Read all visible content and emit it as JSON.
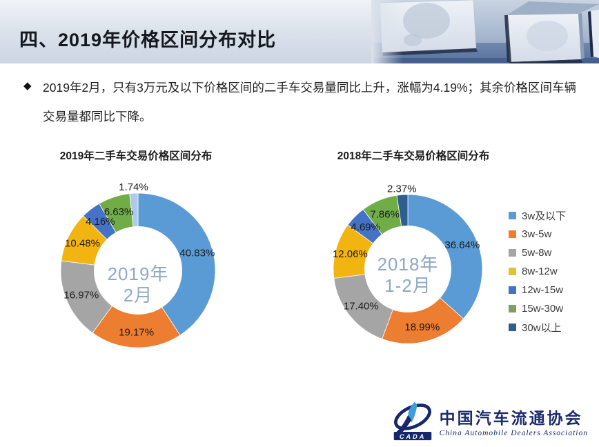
{
  "header": {
    "title": "四、2019年价格区间分布对比"
  },
  "summary": {
    "bullet": "◆",
    "text": "2019年2月，只有3万元及以下价格区间的二手车交易量同比上升，涨幅为4.19%；其余价格区间车辆交易量都同比下降。"
  },
  "chart_data": [
    {
      "type": "pie",
      "subtype": "donut",
      "title": "2019年二手车交易价格区间分布",
      "center_label_line1": "2019年",
      "center_label_line2": "2月",
      "categories": [
        "3w及以下",
        "3w-5w",
        "5w-8w",
        "8w-12w",
        "12w-15w",
        "15w-30w",
        "30w以上"
      ],
      "values": [
        40.83,
        19.17,
        16.97,
        10.48,
        4.16,
        6.63,
        1.74
      ],
      "labels": [
        "40.83%",
        "19.17%",
        "16.97%",
        "10.48%",
        "4.16%",
        "6.63%",
        "1.74%"
      ],
      "colors": [
        "#5B9BD5",
        "#ED7D31",
        "#A5A5A5",
        "#F2B411",
        "#4472C4",
        "#70AD47",
        "#AFC9E8"
      ],
      "start_angle_deg": 0,
      "direction": "clockwise",
      "legend_position": "right"
    },
    {
      "type": "pie",
      "subtype": "donut",
      "title": "2018年二手车交易价格区间分布",
      "center_label_line1": "2018年",
      "center_label_line2": "1-2月",
      "categories": [
        "3w及以下",
        "3w-5w",
        "5w-8w",
        "8w-12w",
        "12w-15w",
        "15w-30w",
        "30w以上"
      ],
      "values": [
        36.64,
        18.99,
        17.4,
        12.06,
        4.69,
        7.86,
        2.37
      ],
      "labels": [
        "36.64%",
        "18.99%",
        "17.40%",
        "12.06%",
        "4.69%",
        "7.86%",
        "2.37%"
      ],
      "colors": [
        "#5B9BD5",
        "#ED7D31",
        "#A5A5A5",
        "#F2B411",
        "#4472C4",
        "#70AD47",
        "#2D5E8D"
      ],
      "start_angle_deg": 0,
      "direction": "clockwise",
      "legend_position": "right"
    }
  ],
  "legend": {
    "items": [
      {
        "label": "3w及以下",
        "color": "#5B9BD5"
      },
      {
        "label": "3w-5w",
        "color": "#ED7D31"
      },
      {
        "label": "5w-8w",
        "color": "#A5A5A5"
      },
      {
        "label": "8w-12w",
        "color": "#E3C230"
      },
      {
        "label": "12w-15w",
        "color": "#4472C4"
      },
      {
        "label": "15w-30w",
        "color": "#7F9F67"
      },
      {
        "label": "30w以上",
        "color": "#2D5E8D"
      }
    ]
  },
  "colors": {
    "center_text": "#8EA9C6",
    "label_text": "#1b1b1b",
    "logo_navy": "#1c2b6d",
    "logo_lightblue": "#3e9ed8"
  },
  "footer_logo": {
    "acronym": "CADA",
    "name_cn": "中国汽车流通协会",
    "name_en": "China Automobile Dealers Association"
  }
}
